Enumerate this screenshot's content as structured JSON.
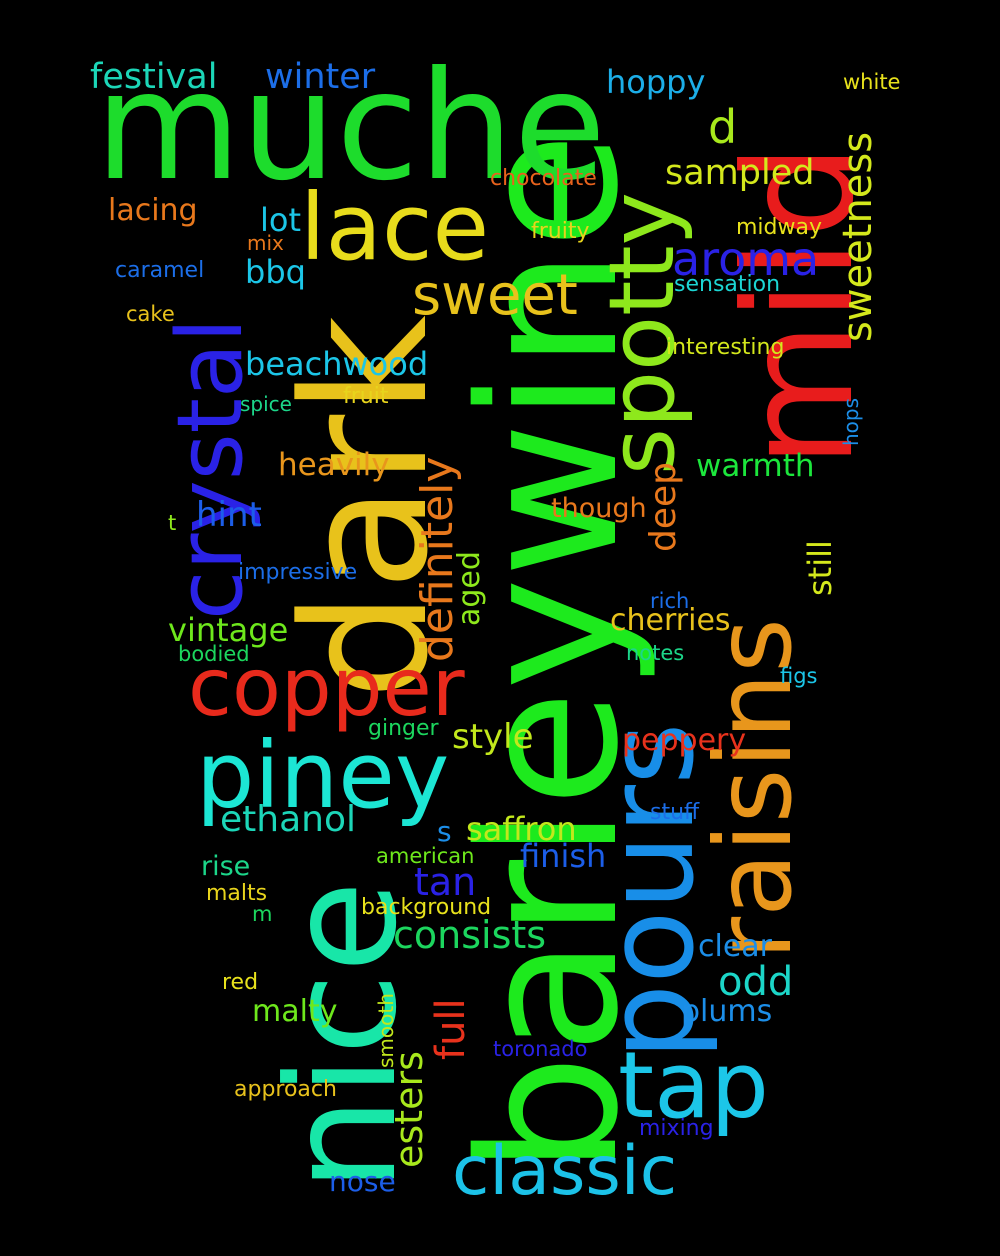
{
  "cloud": {
    "background": "#000000",
    "words": [
      {
        "text": "barleywine",
        "color": "#1dea1d",
        "rotated": true
      },
      {
        "text": "dark",
        "color": "#e8c21b",
        "rotated": true
      },
      {
        "text": "muche",
        "color": "#1ddc2c",
        "rotated": false
      },
      {
        "text": "nice",
        "color": "#18e6a8",
        "rotated": true
      },
      {
        "text": "mild",
        "color": "#e81c1c",
        "rotated": true
      },
      {
        "text": "pours",
        "color": "#188ee8",
        "rotated": true
      },
      {
        "text": "raisins",
        "color": "#e8961c",
        "rotated": true
      },
      {
        "text": "spotty",
        "color": "#8ee81c",
        "rotated": true
      },
      {
        "text": "crystal",
        "color": "#2a22e6",
        "rotated": true
      },
      {
        "text": "lace",
        "color": "#e8dc1c",
        "rotated": false
      },
      {
        "text": "copper",
        "color": "#e82a1c",
        "rotated": false
      },
      {
        "text": "piney",
        "color": "#1ce6d4",
        "rotated": false
      },
      {
        "text": "tap",
        "color": "#1cc6e8",
        "rotated": false
      },
      {
        "text": "classic",
        "color": "#1cc2e8",
        "rotated": false
      },
      {
        "text": "sweet",
        "color": "#e8c21c",
        "rotated": false
      },
      {
        "text": "aroma",
        "color": "#2a22e6",
        "rotated": false
      },
      {
        "text": "sweetness",
        "color": "#d4e81c",
        "rotated": true
      },
      {
        "text": "definitely",
        "color": "#e8781c",
        "rotated": true
      },
      {
        "text": "festival",
        "color": "#1cd6b8",
        "rotated": false
      },
      {
        "text": "winter",
        "color": "#1c6ee8",
        "rotated": false
      },
      {
        "text": "hoppy",
        "color": "#1caee8",
        "rotated": false
      },
      {
        "text": "white",
        "color": "#e8e21c",
        "rotated": false
      },
      {
        "text": "d",
        "color": "#a8e81c",
        "rotated": false
      },
      {
        "text": "sampled",
        "color": "#d4e81c",
        "rotated": false
      },
      {
        "text": "chocolate",
        "color": "#e8621c",
        "rotated": false
      },
      {
        "text": "lacing",
        "color": "#e8781c",
        "rotated": false
      },
      {
        "text": "lot",
        "color": "#1cc6e8",
        "rotated": false
      },
      {
        "text": "fruity",
        "color": "#e8d41c",
        "rotated": false
      },
      {
        "text": "midway",
        "color": "#e8e21c",
        "rotated": false
      },
      {
        "text": "mix",
        "color": "#e8781c",
        "rotated": false
      },
      {
        "text": "bbq",
        "color": "#1cc6e8",
        "rotated": false
      },
      {
        "text": "caramel",
        "color": "#1c6ee8",
        "rotated": false
      },
      {
        "text": "sensation",
        "color": "#1cd6d4",
        "rotated": false
      },
      {
        "text": "cake",
        "color": "#e8c21c",
        "rotated": false
      },
      {
        "text": "interesting",
        "color": "#d4e81c",
        "rotated": false
      },
      {
        "text": "beachwood",
        "color": "#1cc6e8",
        "rotated": false
      },
      {
        "text": "fruit",
        "color": "#e8d41c",
        "rotated": false
      },
      {
        "text": "spice",
        "color": "#1cd68a",
        "rotated": false
      },
      {
        "text": "hops",
        "color": "#1c8ee8",
        "rotated": true
      },
      {
        "text": "heavily",
        "color": "#e8961c",
        "rotated": false
      },
      {
        "text": "deep",
        "color": "#e8781c",
        "rotated": true
      },
      {
        "text": "warmth",
        "color": "#1ce63c",
        "rotated": false
      },
      {
        "text": "still",
        "color": "#d4e81c",
        "rotated": true
      },
      {
        "text": "hint",
        "color": "#1c5ee8",
        "rotated": false
      },
      {
        "text": "though",
        "color": "#e8781c",
        "rotated": false
      },
      {
        "text": "t",
        "color": "#8ee81c",
        "rotated": false
      },
      {
        "text": "impressive",
        "color": "#1c6ee8",
        "rotated": false
      },
      {
        "text": "aged",
        "color": "#8ee81c",
        "rotated": true
      },
      {
        "text": "rich",
        "color": "#1c6ee8",
        "rotated": false
      },
      {
        "text": "vintage",
        "color": "#6ee81c",
        "rotated": false
      },
      {
        "text": "cherries",
        "color": "#e8c21c",
        "rotated": false
      },
      {
        "text": "bodied",
        "color": "#1cd65e",
        "rotated": false
      },
      {
        "text": "notes",
        "color": "#1cd68a",
        "rotated": false
      },
      {
        "text": "figs",
        "color": "#1cc6e8",
        "rotated": false
      },
      {
        "text": "ginger",
        "color": "#1cd65e",
        "rotated": false
      },
      {
        "text": "style",
        "color": "#c2e81c",
        "rotated": false
      },
      {
        "text": "peppery",
        "color": "#e8321c",
        "rotated": false
      },
      {
        "text": "ethanol",
        "color": "#1cd6b8",
        "rotated": false
      },
      {
        "text": "stuff",
        "color": "#1c6ee8",
        "rotated": false
      },
      {
        "text": "s",
        "color": "#1c8ee8",
        "rotated": false
      },
      {
        "text": "saffron",
        "color": "#c2e81c",
        "rotated": false
      },
      {
        "text": "rise",
        "color": "#1cd68a",
        "rotated": false
      },
      {
        "text": "american",
        "color": "#6ee81c",
        "rotated": false
      },
      {
        "text": "finish",
        "color": "#1c5ee8",
        "rotated": false
      },
      {
        "text": "malts",
        "color": "#e8d41c",
        "rotated": false
      },
      {
        "text": "tan",
        "color": "#2a22e6",
        "rotated": false
      },
      {
        "text": "m",
        "color": "#1cd65e",
        "rotated": false
      },
      {
        "text": "background",
        "color": "#e8e21c",
        "rotated": false
      },
      {
        "text": "consists",
        "color": "#1cd65e",
        "rotated": false
      },
      {
        "text": "clear",
        "color": "#1c8ee8",
        "rotated": false
      },
      {
        "text": "full",
        "color": "#e8321c",
        "rotated": true
      },
      {
        "text": "odd",
        "color": "#1cd6c8",
        "rotated": false
      },
      {
        "text": "red",
        "color": "#e8e21c",
        "rotated": false
      },
      {
        "text": "smooth",
        "color": "#c2e81c",
        "rotated": true
      },
      {
        "text": "malty",
        "color": "#6ee81c",
        "rotated": false
      },
      {
        "text": "esters",
        "color": "#a8e81c",
        "rotated": true
      },
      {
        "text": "plums",
        "color": "#1c8ee8",
        "rotated": false
      },
      {
        "text": "toronado",
        "color": "#2a22e6",
        "rotated": false
      },
      {
        "text": "approach",
        "color": "#e8c21c",
        "rotated": false
      },
      {
        "text": "mixing",
        "color": "#2a22e6",
        "rotated": false
      },
      {
        "text": "nose",
        "color": "#1c5ee8",
        "rotated": false
      }
    ]
  }
}
